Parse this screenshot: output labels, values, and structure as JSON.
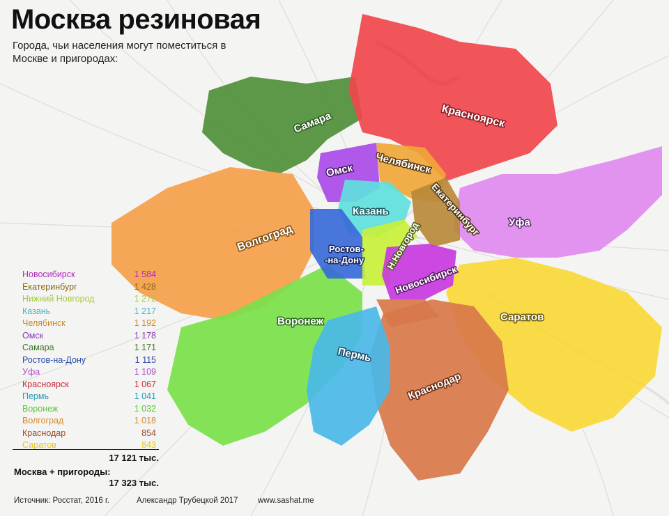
{
  "title": "Москва резиновая",
  "subtitle": "Города, чьи населения могут поместиться в Москве и пригородах:",
  "legend": [
    {
      "name": "Новосибирск",
      "value": "1 584",
      "color": "#b02ab8"
    },
    {
      "name": "Екатеринбург",
      "value": "1 428",
      "color": "#8a6a1a"
    },
    {
      "name": "Нижний Новгород",
      "value": "1 272",
      "color": "#a7c93a"
    },
    {
      "name": "Казань",
      "value": "1 217",
      "color": "#3fb8c8"
    },
    {
      "name": "Челябинск",
      "value": "1 192",
      "color": "#c98a2a"
    },
    {
      "name": "Омск",
      "value": "1 178",
      "color": "#8a3ab8"
    },
    {
      "name": "Самара",
      "value": "1 171",
      "color": "#3a7a2a"
    },
    {
      "name": "Ростов-на-Дону",
      "value": "1 115",
      "color": "#2a4aa8"
    },
    {
      "name": "Уфа",
      "value": "1 109",
      "color": "#b04ac8"
    },
    {
      "name": "Красноярск",
      "value": "1 067",
      "color": "#c82a3a"
    },
    {
      "name": "Пермь",
      "value": "1 041",
      "color": "#2a9ab8"
    },
    {
      "name": "Воронеж",
      "value": "1 032",
      "color": "#5ac83a"
    },
    {
      "name": "Волгоград",
      "value": "1 018",
      "color": "#d8882a"
    },
    {
      "name": "Краснодар",
      "value": "854",
      "color": "#9a4a2a"
    },
    {
      "name": "Саратов",
      "value": "843",
      "color": "#e0c820"
    }
  ],
  "total": "17 121 тыс.",
  "moscow_label": "Москва + пригороды:",
  "moscow_value": "17 323 тыс.",
  "footer": {
    "source": "Источник: Росстат, 2016 г.",
    "author": "Александр Трубецкой 2017",
    "site": "www.sashat.me"
  },
  "map_labels": {
    "samara": "Самара",
    "krasnoyarsk": "Красноярск",
    "omsk": "Омск",
    "chelyabinsk": "Челябинск",
    "kazan": "Казань",
    "ekaterinburg": "Екатеринбург",
    "ufa": "Уфа",
    "volgograd": "Волгоград",
    "rostov1": "Ростов-",
    "rostov2": "-на-Дону",
    "nnovgorod": "Н.Новгород",
    "novosibirsk": "Новосибирск",
    "voronezh": "Воронеж",
    "saratov": "Саратов",
    "perm": "Пермь",
    "krasnodar": "Краснодар"
  },
  "colors": {
    "samara": "#4e8f3a",
    "krasnoyarsk": "#f0474d",
    "omsk": "#a94ae8",
    "chelyabinsk": "#f0a63a",
    "kazan": "#5fe0de",
    "ekaterinburg": "#b8893a",
    "ufa": "#e08af0",
    "volgograd": "#f4a04a",
    "rostov": "#3a6ad8",
    "nnovgorod": "#c8f03a",
    "novosibirsk": "#c83ae0",
    "voronezh": "#7ae04a",
    "saratov": "#f8d838",
    "perm": "#4ab8e8",
    "krasnodar": "#d8784a"
  }
}
